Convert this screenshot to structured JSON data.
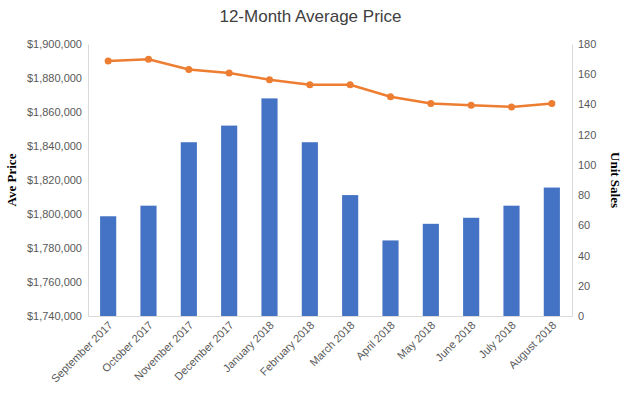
{
  "chart_data": {
    "type": "bar",
    "title": "12-Month Average Price",
    "categories": [
      "September 2017",
      "October 2017",
      "November 2017",
      "December 2017",
      "January 2018",
      "February 2018",
      "March 2018",
      "April 2018",
      "May 2018",
      "June 2018",
      "July 2018",
      "August 2018"
    ],
    "y_label": "Ave Price",
    "y2_label": "Unit Sales",
    "ylim": [
      1740000,
      1900000
    ],
    "yticks": [
      {
        "value": 1740000,
        "label": "$1,740,000"
      },
      {
        "value": 1760000,
        "label": "$1,760,000"
      },
      {
        "value": 1780000,
        "label": "$1,780,000"
      },
      {
        "value": 1800000,
        "label": "$1,800,000"
      },
      {
        "value": 1820000,
        "label": "$1,820,000"
      },
      {
        "value": 1840000,
        "label": "$1,840,000"
      },
      {
        "value": 1860000,
        "label": "$1,860,000"
      },
      {
        "value": 1880000,
        "label": "$1,880,000"
      },
      {
        "value": 1900000,
        "label": "$1,900,000"
      }
    ],
    "y2lim": [
      0,
      180
    ],
    "y2ticks": [
      0,
      20,
      40,
      60,
      80,
      100,
      120,
      140,
      160,
      180
    ],
    "grid": false,
    "series": [
      {
        "type": "bar",
        "color": "#4472c4",
        "axis": "y2",
        "values": [
          66,
          73,
          115,
          126,
          144,
          115,
          80,
          50,
          61,
          65,
          73,
          85
        ]
      },
      {
        "type": "line",
        "color": "#ed7d31",
        "marker": "circle",
        "values": [
          1890000,
          1891000,
          1885000,
          1883000,
          1879000,
          1876000,
          1876000,
          1869000,
          1865000,
          1864000,
          1863000,
          1865000
        ]
      }
    ]
  }
}
